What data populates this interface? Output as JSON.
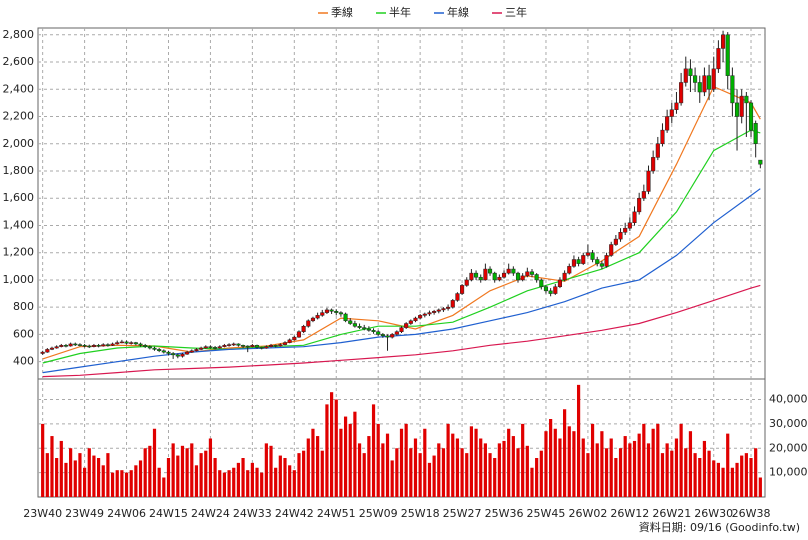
{
  "chart_data": {
    "type": "candlestick",
    "legend": "top-center",
    "grid": true,
    "up_color": "#e00000",
    "down_color": "#00b000",
    "xlim": [
      -1,
      155
    ],
    "xticks": [
      {
        "value": 0,
        "label": "23W40"
      },
      {
        "value": 9,
        "label": "23W49"
      },
      {
        "value": 18,
        "label": "24W06"
      },
      {
        "value": 27,
        "label": "24W15"
      },
      {
        "value": 36,
        "label": "24W24"
      },
      {
        "value": 45,
        "label": "24W33"
      },
      {
        "value": 54,
        "label": "24W42"
      },
      {
        "value": 63,
        "label": "24W51"
      },
      {
        "value": 72,
        "label": "25W09"
      },
      {
        "value": 81,
        "label": "25W18"
      },
      {
        "value": 90,
        "label": "25W27"
      },
      {
        "value": 99,
        "label": "25W36"
      },
      {
        "value": 108,
        "label": "25W45"
      },
      {
        "value": 117,
        "label": "26W02"
      },
      {
        "value": 126,
        "label": "26W12"
      },
      {
        "value": 135,
        "label": "26W21"
      },
      {
        "value": 144,
        "label": "26W30"
      },
      {
        "value": 152,
        "label": "26W38"
      }
    ],
    "ylim": [
      280,
      2850
    ],
    "yticks": [
      400,
      600,
      800,
      {
        "value": 1000,
        "label": "1,000"
      },
      {
        "value": 1200,
        "label": "1,200"
      },
      {
        "value": 1400,
        "label": "1,400"
      },
      {
        "value": 1600,
        "label": "1,600"
      },
      {
        "value": 1800,
        "label": "1,800"
      },
      {
        "value": 2000,
        "label": "2,000"
      },
      {
        "value": 2200,
        "label": "2,200"
      },
      {
        "value": 2400,
        "label": "2,400"
      },
      {
        "value": 2600,
        "label": "2,600"
      },
      {
        "value": 2800,
        "label": "2,800"
      }
    ],
    "ohlc": [
      [
        460,
        480,
        450,
        470
      ],
      [
        470,
        500,
        465,
        490
      ],
      [
        490,
        510,
        485,
        500
      ],
      [
        500,
        520,
        495,
        510
      ],
      [
        510,
        530,
        505,
        520
      ],
      [
        520,
        530,
        505,
        515
      ],
      [
        515,
        540,
        510,
        530
      ],
      [
        530,
        540,
        515,
        525
      ],
      [
        525,
        535,
        512,
        520
      ],
      [
        520,
        530,
        505,
        515
      ],
      [
        515,
        525,
        500,
        510
      ],
      [
        510,
        530,
        505,
        520
      ],
      [
        520,
        530,
        505,
        515
      ],
      [
        515,
        535,
        510,
        525
      ],
      [
        525,
        535,
        510,
        520
      ],
      [
        520,
        540,
        515,
        530
      ],
      [
        530,
        555,
        525,
        540
      ],
      [
        540,
        560,
        535,
        545
      ],
      [
        545,
        555,
        525,
        535
      ],
      [
        535,
        550,
        525,
        540
      ],
      [
        540,
        545,
        520,
        530
      ],
      [
        530,
        540,
        510,
        520
      ],
      [
        520,
        530,
        500,
        510
      ],
      [
        510,
        520,
        490,
        500
      ],
      [
        500,
        510,
        480,
        490
      ],
      [
        490,
        500,
        470,
        480
      ],
      [
        480,
        490,
        460,
        470
      ],
      [
        470,
        480,
        445,
        460
      ],
      [
        460,
        470,
        420,
        450
      ],
      [
        450,
        460,
        425,
        440
      ],
      [
        440,
        465,
        430,
        455
      ],
      [
        455,
        480,
        450,
        470
      ],
      [
        470,
        490,
        465,
        480
      ],
      [
        480,
        500,
        475,
        490
      ],
      [
        490,
        510,
        485,
        500
      ],
      [
        500,
        520,
        495,
        510
      ],
      [
        510,
        520,
        495,
        505
      ],
      [
        505,
        515,
        490,
        500
      ],
      [
        500,
        520,
        495,
        510
      ],
      [
        510,
        530,
        505,
        520
      ],
      [
        520,
        535,
        510,
        525
      ],
      [
        525,
        540,
        515,
        530
      ],
      [
        530,
        535,
        510,
        520
      ],
      [
        520,
        525,
        500,
        515
      ],
      [
        515,
        520,
        470,
        510
      ],
      [
        510,
        530,
        505,
        520
      ],
      [
        520,
        525,
        495,
        505
      ],
      [
        505,
        510,
        490,
        500
      ],
      [
        500,
        520,
        495,
        510
      ],
      [
        510,
        530,
        505,
        520
      ],
      [
        520,
        525,
        505,
        515
      ],
      [
        515,
        535,
        510,
        525
      ],
      [
        525,
        550,
        520,
        540
      ],
      [
        540,
        570,
        535,
        560
      ],
      [
        560,
        590,
        555,
        580
      ],
      [
        580,
        630,
        575,
        620
      ],
      [
        620,
        670,
        610,
        660
      ],
      [
        660,
        710,
        650,
        700
      ],
      [
        700,
        730,
        690,
        720
      ],
      [
        720,
        760,
        710,
        740
      ],
      [
        740,
        780,
        730,
        760
      ],
      [
        760,
        795,
        750,
        780
      ],
      [
        780,
        790,
        750,
        770
      ],
      [
        770,
        785,
        740,
        760
      ],
      [
        760,
        770,
        730,
        750
      ],
      [
        750,
        760,
        690,
        700
      ],
      [
        700,
        720,
        670,
        680
      ],
      [
        680,
        700,
        650,
        660
      ],
      [
        660,
        680,
        640,
        650
      ],
      [
        650,
        670,
        630,
        640
      ],
      [
        640,
        660,
        620,
        630
      ],
      [
        630,
        645,
        605,
        620
      ],
      [
        620,
        630,
        590,
        600
      ],
      [
        600,
        610,
        575,
        590
      ],
      [
        590,
        600,
        480,
        580
      ],
      [
        580,
        610,
        570,
        600
      ],
      [
        600,
        630,
        590,
        620
      ],
      [
        620,
        660,
        610,
        650
      ],
      [
        650,
        690,
        640,
        680
      ],
      [
        680,
        710,
        670,
        700
      ],
      [
        700,
        730,
        690,
        720
      ],
      [
        720,
        750,
        710,
        740
      ],
      [
        740,
        760,
        725,
        750
      ],
      [
        750,
        775,
        735,
        760
      ],
      [
        760,
        780,
        745,
        770
      ],
      [
        770,
        790,
        755,
        780
      ],
      [
        780,
        800,
        765,
        790
      ],
      [
        790,
        820,
        775,
        800
      ],
      [
        800,
        860,
        790,
        850
      ],
      [
        850,
        910,
        840,
        900
      ],
      [
        900,
        970,
        890,
        960
      ],
      [
        960,
        1020,
        950,
        1000
      ],
      [
        1000,
        1080,
        990,
        1050
      ],
      [
        1050,
        1070,
        1000,
        1020
      ],
      [
        1020,
        1040,
        980,
        1000
      ],
      [
        1000,
        1120,
        995,
        1080
      ],
      [
        1080,
        1100,
        1030,
        1050
      ],
      [
        1050,
        1060,
        980,
        1000
      ],
      [
        1000,
        1040,
        990,
        1020
      ],
      [
        1020,
        1070,
        1010,
        1050
      ],
      [
        1050,
        1120,
        1040,
        1080
      ],
      [
        1080,
        1100,
        1030,
        1050
      ],
      [
        1050,
        1060,
        980,
        1000
      ],
      [
        1000,
        1050,
        990,
        1030
      ],
      [
        1030,
        1090,
        1020,
        1060
      ],
      [
        1060,
        1080,
        1020,
        1040
      ],
      [
        1040,
        1050,
        980,
        1000
      ],
      [
        1000,
        1010,
        930,
        950
      ],
      [
        950,
        960,
        900,
        920
      ],
      [
        920,
        940,
        880,
        900
      ],
      [
        900,
        970,
        890,
        950
      ],
      [
        950,
        1020,
        940,
        1000
      ],
      [
        1000,
        1070,
        990,
        1050
      ],
      [
        1050,
        1120,
        1040,
        1100
      ],
      [
        1100,
        1180,
        1090,
        1150
      ],
      [
        1150,
        1170,
        1100,
        1120
      ],
      [
        1120,
        1200,
        1110,
        1180
      ],
      [
        1180,
        1260,
        1170,
        1200
      ],
      [
        1200,
        1220,
        1130,
        1150
      ],
      [
        1150,
        1170,
        1100,
        1120
      ],
      [
        1120,
        1140,
        1080,
        1100
      ],
      [
        1100,
        1200,
        1090,
        1180
      ],
      [
        1180,
        1280,
        1170,
        1260
      ],
      [
        1260,
        1330,
        1250,
        1300
      ],
      [
        1300,
        1380,
        1280,
        1350
      ],
      [
        1350,
        1420,
        1330,
        1380
      ],
      [
        1380,
        1460,
        1360,
        1420
      ],
      [
        1420,
        1540,
        1400,
        1500
      ],
      [
        1500,
        1640,
        1480,
        1600
      ],
      [
        1600,
        1700,
        1580,
        1650
      ],
      [
        1650,
        1840,
        1630,
        1800
      ],
      [
        1800,
        1950,
        1780,
        1900
      ],
      [
        1900,
        2050,
        1880,
        2000
      ],
      [
        2000,
        2150,
        1980,
        2100
      ],
      [
        2100,
        2250,
        2080,
        2200
      ],
      [
        2200,
        2300,
        2150,
        2250
      ],
      [
        2250,
        2380,
        2220,
        2300
      ],
      [
        2300,
        2520,
        2280,
        2450
      ],
      [
        2450,
        2640,
        2420,
        2550
      ],
      [
        2550,
        2620,
        2380,
        2500
      ],
      [
        2500,
        2560,
        2380,
        2450
      ],
      [
        2450,
        2500,
        2300,
        2380
      ],
      [
        2380,
        2560,
        2350,
        2500
      ],
      [
        2500,
        2580,
        2320,
        2400
      ],
      [
        2400,
        2640,
        2380,
        2550
      ],
      [
        2550,
        2760,
        2520,
        2700
      ],
      [
        2700,
        2830,
        2600,
        2800
      ],
      [
        2800,
        2820,
        2400,
        2500
      ],
      [
        2500,
        2560,
        2200,
        2300
      ],
      [
        2300,
        2400,
        1950,
        2200
      ],
      [
        2200,
        2400,
        2150,
        2350
      ],
      [
        2350,
        2380,
        2050,
        2300
      ],
      [
        2300,
        2320,
        2050,
        2100
      ],
      [
        2150,
        2170,
        1900,
        2000
      ],
      [
        1880,
        1880,
        1820,
        1850
      ]
    ],
    "ma": [
      {
        "name": "季線",
        "color": "#f07820",
        "x": [
          0,
          8,
          16,
          24,
          32,
          40,
          48,
          56,
          64,
          72,
          80,
          88,
          96,
          104,
          112,
          120,
          128,
          136,
          144,
          152,
          154
        ],
        "values": [
          420,
          510,
          520,
          515,
          470,
          500,
          515,
          560,
          720,
          700,
          640,
          740,
          920,
          1030,
          990,
          1140,
          1320,
          1850,
          2420,
          2300,
          2180
        ]
      },
      {
        "name": "半年",
        "color": "#20d020",
        "x": [
          0,
          8,
          16,
          24,
          32,
          40,
          48,
          56,
          64,
          72,
          80,
          88,
          96,
          104,
          112,
          120,
          128,
          136,
          144,
          152,
          154
        ],
        "values": [
          390,
          460,
          500,
          515,
          500,
          490,
          510,
          520,
          600,
          660,
          660,
          690,
          800,
          920,
          1000,
          1080,
          1200,
          1500,
          1950,
          2100,
          2080
        ]
      },
      {
        "name": "年線",
        "color": "#2060d0",
        "x": [
          0,
          8,
          16,
          24,
          32,
          40,
          48,
          56,
          64,
          72,
          80,
          88,
          96,
          104,
          112,
          120,
          128,
          136,
          144,
          152,
          154
        ],
        "values": [
          320,
          360,
          400,
          440,
          470,
          490,
          500,
          510,
          540,
          580,
          600,
          640,
          700,
          760,
          840,
          940,
          1000,
          1180,
          1420,
          1620,
          1670
        ]
      },
      {
        "name": "三年",
        "color": "#d81850",
        "x": [
          0,
          8,
          16,
          24,
          32,
          40,
          48,
          56,
          64,
          72,
          80,
          88,
          96,
          104,
          112,
          120,
          128,
          136,
          144,
          152,
          154
        ],
        "values": [
          290,
          300,
          320,
          340,
          350,
          360,
          375,
          390,
          410,
          430,
          450,
          480,
          520,
          550,
          590,
          630,
          680,
          760,
          850,
          940,
          960
        ]
      }
    ],
    "volume": {
      "color": "#e00000",
      "ylim": [
        0,
        48000
      ],
      "yticks": [
        {
          "value": 10000,
          "label": "10,000"
        },
        {
          "value": 20000,
          "label": "20,000"
        },
        {
          "value": 30000,
          "label": "30,000"
        },
        {
          "value": 40000,
          "label": "40,000"
        }
      ],
      "values": [
        30000,
        18000,
        25000,
        16000,
        23000,
        14000,
        20000,
        15000,
        18000,
        12000,
        20000,
        17000,
        16000,
        13000,
        18000,
        10000,
        11000,
        11000,
        10000,
        11000,
        13000,
        15000,
        20000,
        21000,
        28000,
        12000,
        8000,
        16000,
        22000,
        17000,
        21000,
        20000,
        22000,
        13000,
        18000,
        19000,
        24000,
        16000,
        11000,
        10000,
        11000,
        12000,
        14000,
        16000,
        11000,
        14000,
        12000,
        10000,
        22000,
        21000,
        12000,
        17000,
        16000,
        13000,
        11000,
        18000,
        19000,
        24000,
        28000,
        25000,
        19000,
        38000,
        43000,
        40000,
        28000,
        33000,
        30000,
        35000,
        22000,
        18000,
        25000,
        38000,
        30000,
        22000,
        26000,
        15000,
        20000,
        28000,
        30000,
        20000,
        24000,
        18000,
        28000,
        14000,
        17000,
        22000,
        20000,
        30000,
        26000,
        24000,
        20000,
        18000,
        29000,
        28000,
        24000,
        22000,
        18000,
        16000,
        22000,
        23000,
        28000,
        25000,
        20000,
        30000,
        21000,
        12000,
        16000,
        19000,
        27000,
        32000,
        28000,
        24000,
        36000,
        29000,
        27000,
        46000,
        24000,
        18000,
        30000,
        22000,
        27000,
        20000,
        24000,
        16000,
        20000,
        25000,
        22000,
        23000,
        26000,
        30000,
        22000,
        28000,
        30000,
        18000,
        22000,
        19000,
        24000,
        30000,
        20000,
        27000,
        18000,
        16000,
        23000,
        19000,
        15000,
        14000,
        12000,
        26000,
        12000,
        14000,
        17000,
        18000,
        16000,
        20000,
        8000
      ]
    },
    "footnote": "資料日期: 09/16 (Goodinfo.tw)"
  }
}
